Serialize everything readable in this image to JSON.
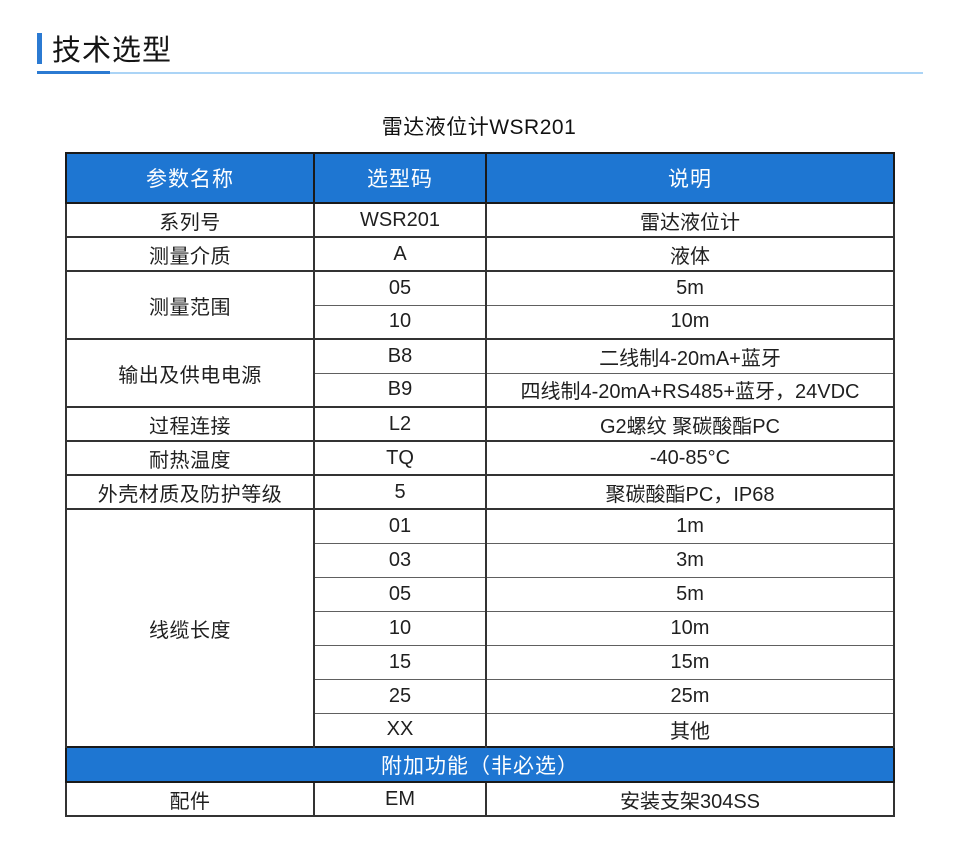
{
  "page": {
    "section_title": "技术选型",
    "table_title": "雷达液位计WSR201",
    "accent_color": "#1E76D2",
    "underline_dark_color": "#2b7ad2",
    "underline_light_color": "#abd4f6"
  },
  "table": {
    "headers": [
      "参数名称",
      "选型码",
      "说明"
    ],
    "groups": [
      {
        "param": "系列号",
        "options": [
          {
            "code": "WSR201",
            "desc": "雷达液位计"
          }
        ]
      },
      {
        "param": "测量介质",
        "options": [
          {
            "code": "A",
            "desc": "液体"
          }
        ]
      },
      {
        "param": "测量范围",
        "options": [
          {
            "code": "05",
            "desc": "5m"
          },
          {
            "code": "10",
            "desc": "10m"
          }
        ]
      },
      {
        "param": "输出及供电电源",
        "options": [
          {
            "code": "B8",
            "desc": "二线制4-20mA+蓝牙"
          },
          {
            "code": "B9",
            "desc": "四线制4-20mA+RS485+蓝牙，24VDC"
          }
        ]
      },
      {
        "param": "过程连接",
        "options": [
          {
            "code": "L2",
            "desc": "G2螺纹 聚碳酸酯PC"
          }
        ]
      },
      {
        "param": "耐热温度",
        "options": [
          {
            "code": "TQ",
            "desc": "-40-85°C"
          }
        ]
      },
      {
        "param": "外壳材质及防护等级",
        "options": [
          {
            "code": "5",
            "desc": "聚碳酸酯PC，IP68"
          }
        ]
      },
      {
        "param": "线缆长度",
        "options": [
          {
            "code": "01",
            "desc": "1m"
          },
          {
            "code": "03",
            "desc": "3m"
          },
          {
            "code": "05",
            "desc": "5m"
          },
          {
            "code": "10",
            "desc": "10m"
          },
          {
            "code": "15",
            "desc": "15m"
          },
          {
            "code": "25",
            "desc": "25m"
          },
          {
            "code": "XX",
            "desc": "其他"
          }
        ]
      }
    ],
    "band_label": "附加功能（非必选）",
    "extra_groups": [
      {
        "param": "配件",
        "options": [
          {
            "code": "EM",
            "desc": "安装支架304SS"
          }
        ]
      }
    ]
  }
}
